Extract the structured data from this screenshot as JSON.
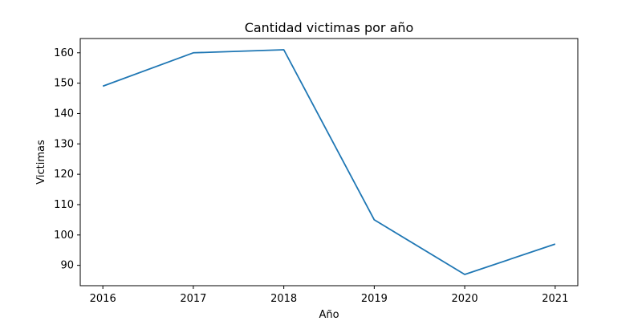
{
  "chart_data": {
    "type": "line",
    "title": "Cantidad victimas por año",
    "xlabel": "Año",
    "ylabel": "Victimas",
    "x": [
      2016,
      2017,
      2018,
      2019,
      2020,
      2021
    ],
    "series": [
      {
        "values": [
          149,
          160,
          161,
          105,
          87,
          97
        ],
        "color": "#1f77b4"
      }
    ],
    "x_ticks": [
      "2016",
      "2017",
      "2018",
      "2019",
      "2020",
      "2021"
    ],
    "y_ticks": [
      90,
      100,
      110,
      120,
      130,
      140,
      150,
      160
    ],
    "xlim": [
      2015.75,
      2021.25
    ],
    "ylim": [
      83.3,
      164.7
    ],
    "grid": false,
    "legend": "none"
  }
}
